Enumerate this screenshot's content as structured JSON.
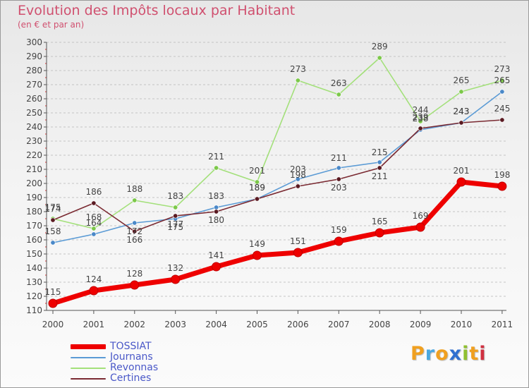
{
  "header": {
    "title": "Evolution des Impôts locaux par Habitant",
    "subtitle": "(en € et par an)"
  },
  "logo": {
    "text": "Proxiti",
    "letters": [
      "P",
      "r",
      "o",
      "x",
      "i",
      "t",
      "i"
    ],
    "colors": [
      "#f0a020",
      "#4aa8e0",
      "#f0a020",
      "#3070d0",
      "#90c030",
      "#f0a020",
      "#d03040"
    ]
  },
  "chart_data": {
    "type": "line",
    "title": "Evolution des Impôts locaux par Habitant",
    "subtitle": "(en € et par an)",
    "xlabel": "",
    "ylabel": "",
    "x": [
      "2000",
      "2001",
      "2002",
      "2003",
      "2004",
      "2005",
      "2006",
      "2007",
      "2008",
      "2009",
      "2010",
      "2011"
    ],
    "ylim": [
      110,
      300
    ],
    "yticks": [
      110,
      120,
      130,
      140,
      150,
      160,
      170,
      180,
      190,
      200,
      210,
      220,
      230,
      240,
      250,
      260,
      270,
      280,
      290,
      300
    ],
    "grid": "horizontal dashed",
    "legend_position": "bottom-left",
    "series": [
      {
        "name": "Journans",
        "color": "#5b9bd5",
        "marker": "#4a88c8",
        "values": [
          158,
          164,
          172,
          175,
          183,
          189,
          203,
          211,
          215,
          238,
          243,
          265
        ]
      },
      {
        "name": "Revonnas",
        "color": "#a3e07a",
        "marker": "#7cc84a",
        "values": [
          175,
          168,
          188,
          183,
          211,
          201,
          273,
          263,
          289,
          244,
          265,
          273
        ]
      },
      {
        "name": "Certines",
        "color": "#7a2a32",
        "marker": "#5a1a22",
        "values": [
          174,
          186,
          166,
          177,
          180,
          189,
          198,
          203,
          211,
          239,
          243,
          245
        ]
      },
      {
        "name": "TOSSIAT",
        "color": "#ee0000",
        "marker": "#ee0000",
        "values": [
          115,
          124,
          128,
          132,
          141,
          149,
          151,
          159,
          165,
          169,
          201,
          198
        ]
      }
    ]
  }
}
